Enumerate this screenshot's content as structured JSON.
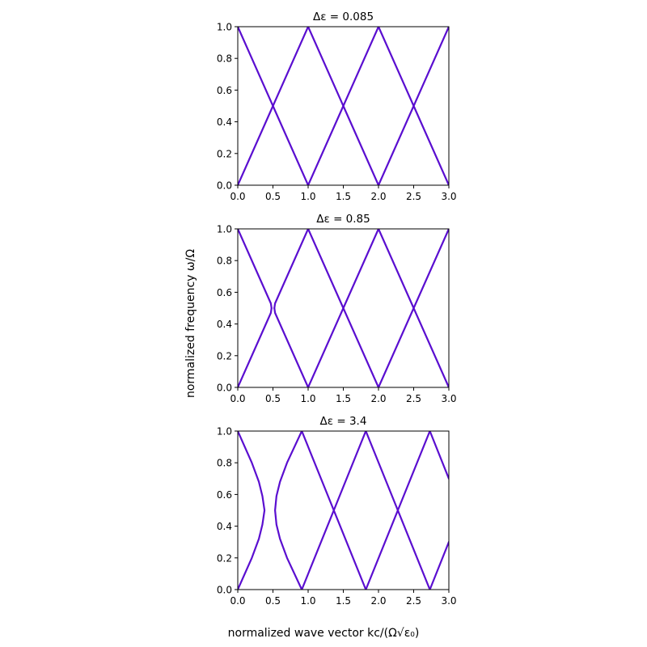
{
  "figure": {
    "xlabel": "normalized wave vector kc/(Ω√ε₀)",
    "ylabel": "normalized frequency ω/Ω",
    "line_color": "#5a0ed0",
    "background": "#ffffff"
  },
  "chart_data": [
    {
      "type": "line",
      "title": "Δε = 0.085",
      "xlim": [
        0,
        3
      ],
      "ylim": [
        0,
        1
      ],
      "xticks": [
        "0.0",
        "0.5",
        "1.0",
        "1.5",
        "2.0",
        "2.5",
        "3.0"
      ],
      "yticks": [
        "0.0",
        "0.2",
        "0.4",
        "0.6",
        "0.8",
        "1.0"
      ],
      "grid": false,
      "series": [
        {
          "x": [
            0,
            0.5,
            1,
            1.5,
            2,
            2.5,
            3
          ],
          "y": [
            1,
            0.5,
            0,
            0.5,
            1,
            0.5,
            0
          ]
        },
        {
          "x": [
            0,
            0.5,
            1,
            1.5,
            2,
            2.5,
            3
          ],
          "y": [
            0,
            0.5,
            1,
            0.5,
            0,
            0.5,
            1
          ]
        }
      ]
    },
    {
      "type": "line",
      "title": "Δε = 0.85",
      "xlim": [
        0,
        3
      ],
      "ylim": [
        0,
        1
      ],
      "xticks": [
        "0.0",
        "0.5",
        "1.0",
        "1.5",
        "2.0",
        "2.5",
        "3.0"
      ],
      "yticks": [
        "0.0",
        "0.2",
        "0.4",
        "0.6",
        "0.8",
        "1.0"
      ],
      "grid": false,
      "series": [
        {
          "x": [
            0,
            0.47,
            0.48
          ],
          "y": [
            1,
            0.53,
            0.5
          ]
        },
        {
          "x": [
            0,
            0.47,
            0.48
          ],
          "y": [
            0,
            0.47,
            0.5
          ]
        },
        {
          "x": [
            0.52,
            0.53,
            1,
            1.5,
            2,
            2.5,
            3
          ],
          "y": [
            0.5,
            0.53,
            1,
            0.5,
            0,
            0.5,
            1
          ]
        },
        {
          "x": [
            0.52,
            0.53,
            1,
            1.5,
            2,
            2.5,
            3
          ],
          "y": [
            0.5,
            0.47,
            0,
            0.5,
            1,
            0.5,
            0
          ]
        }
      ]
    },
    {
      "type": "line",
      "title": "Δε = 3.4",
      "xlim": [
        0,
        3
      ],
      "ylim": [
        0,
        1
      ],
      "xticks": [
        "0.0",
        "0.5",
        "1.0",
        "1.5",
        "2.0",
        "2.5",
        "3.0"
      ],
      "yticks": [
        "0.0",
        "0.2",
        "0.4",
        "0.6",
        "0.8",
        "1.0"
      ],
      "grid": false,
      "series": [
        {
          "x": [
            0,
            0.2,
            0.3,
            0.35,
            0.38,
            0.35,
            0.3,
            0.2,
            0
          ],
          "y": [
            1,
            0.8,
            0.68,
            0.59,
            0.5,
            0.41,
            0.32,
            0.2,
            0
          ]
        },
        {
          "x": [
            0.91,
            0.7,
            0.6,
            0.55,
            0.53,
            0.55,
            0.6,
            0.7,
            0.91
          ],
          "y": [
            1,
            0.8,
            0.68,
            0.59,
            0.5,
            0.41,
            0.32,
            0.2,
            0
          ]
        },
        {
          "x": [
            0.91,
            1.365,
            1.82,
            2.275,
            2.73,
            3
          ],
          "y": [
            1,
            0.5,
            0,
            0.5,
            1,
            0.7
          ]
        },
        {
          "x": [
            0.91,
            1.365,
            1.82,
            2.275,
            2.73,
            3
          ],
          "y": [
            0,
            0.5,
            1,
            0.5,
            0,
            0.3
          ]
        }
      ]
    }
  ]
}
